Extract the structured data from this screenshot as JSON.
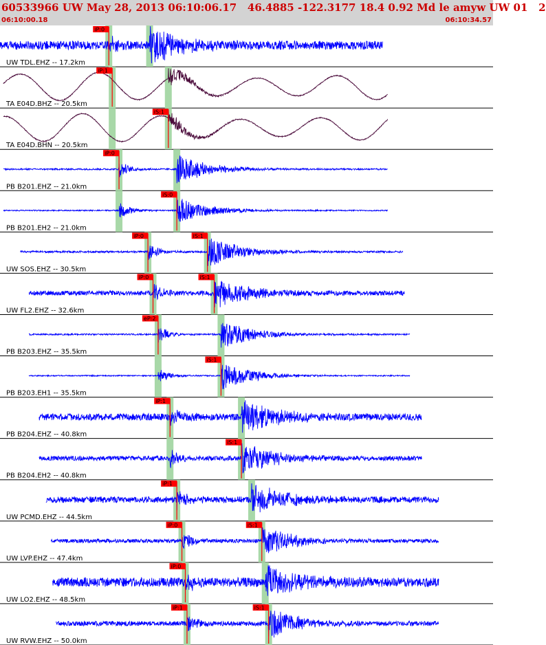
{
  "header": {
    "title": "60533966 UW May 28, 2013 06:10:06.17   46.4885 -122.3177 18.4 0.92 Md le amyw UW 01   2",
    "time_start": "06:10:00.18",
    "time_end": "06:10:34.57"
  },
  "colors": {
    "trace_blue": "#0000ff",
    "trace_dark": "#4a0a3a",
    "pick_red": "#ff0000",
    "window_green": "#a8d8a8",
    "header_bg": "#d3d3d3",
    "title_red": "#cc0000"
  },
  "traces": [
    {
      "label": "UW TDL.EHZ -- 17.2km",
      "color": "blue",
      "kind": "seis",
      "p_pick": "iP:0",
      "s_pick": null,
      "p_time": 6.4,
      "s_time": 8.8,
      "start": 0.0,
      "end": 22.5,
      "noise": 0.22,
      "amp": 1.0
    },
    {
      "label": "TA E04D.BHZ -- 20.5km",
      "color": "dark",
      "kind": "wave",
      "p_pick": "iP:1",
      "s_pick": null,
      "p_time": 6.6,
      "s_time": 9.9,
      "start": 0.2,
      "end": 22.8,
      "noise": 0.05,
      "amp": 0.55
    },
    {
      "label": "TA E04D.BHN -- 20.5km",
      "color": "dark",
      "kind": "wave2",
      "p_pick": null,
      "s_pick": "iS:1",
      "p_time": 6.6,
      "s_time": 9.9,
      "start": 0.2,
      "end": 22.8,
      "noise": 0.05,
      "amp": 0.5
    },
    {
      "label": "PB B201.EHZ -- 21.0km",
      "color": "blue",
      "kind": "seis",
      "p_pick": "iP:0",
      "s_pick": null,
      "p_time": 7.0,
      "s_time": 10.4,
      "start": 0.2,
      "end": 22.8,
      "noise": 0.04,
      "amp": 0.8
    },
    {
      "label": "PB B201.EH2 -- 21.0km",
      "color": "blue",
      "kind": "seis",
      "p_pick": null,
      "s_pick": "iS:0",
      "p_time": 7.0,
      "s_time": 10.4,
      "start": 0.2,
      "end": 22.8,
      "noise": 0.03,
      "amp": 0.7
    },
    {
      "label": "UW SOS.EHZ -- 30.5km",
      "color": "blue",
      "kind": "seis",
      "p_pick": "iP:0",
      "s_pick": "iS:1",
      "p_time": 8.7,
      "s_time": 12.2,
      "start": 1.2,
      "end": 23.7,
      "noise": 0.05,
      "amp": 0.85
    },
    {
      "label": "UW FL2.EHZ -- 32.6km",
      "color": "blue",
      "kind": "seis",
      "p_pick": "iP:0",
      "s_pick": "iS:1",
      "p_time": 9.0,
      "s_time": 12.6,
      "start": 1.7,
      "end": 23.8,
      "noise": 0.12,
      "amp": 0.85
    },
    {
      "label": "PB B203.EHZ -- 35.5km",
      "color": "blue",
      "kind": "seis",
      "p_pick": "eP:2",
      "s_pick": null,
      "p_time": 9.3,
      "s_time": 13.0,
      "start": 1.7,
      "end": 24.1,
      "noise": 0.04,
      "amp": 0.8
    },
    {
      "label": "PB B203.EH1 -- 35.5km",
      "color": "blue",
      "kind": "seis",
      "p_pick": null,
      "s_pick": "iS:1",
      "p_time": 9.3,
      "s_time": 13.0,
      "start": 1.7,
      "end": 24.1,
      "noise": 0.03,
      "amp": 0.75
    },
    {
      "label": "PB B204.EHZ -- 40.8km",
      "color": "blue",
      "kind": "seis",
      "p_pick": "iP:1",
      "s_pick": null,
      "p_time": 10.0,
      "s_time": 14.2,
      "start": 2.3,
      "end": 24.8,
      "noise": 0.18,
      "amp": 0.9
    },
    {
      "label": "PB B204.EH2 -- 40.8km",
      "color": "blue",
      "kind": "seis",
      "p_pick": null,
      "s_pick": "iS:1",
      "p_time": 10.0,
      "s_time": 14.2,
      "start": 2.3,
      "end": 24.8,
      "noise": 0.12,
      "amp": 0.85
    },
    {
      "label": "UW PCMD.EHZ -- 44.5km",
      "color": "blue",
      "kind": "seis",
      "p_pick": "iP:1",
      "s_pick": null,
      "p_time": 10.4,
      "s_time": 14.8,
      "start": 2.7,
      "end": 25.8,
      "noise": 0.16,
      "amp": 0.9
    },
    {
      "label": "UW LVP.EHZ -- 47.4km",
      "color": "blue",
      "kind": "seis",
      "p_pick": "iP:0",
      "s_pick": "iS:1",
      "p_time": 10.7,
      "s_time": 15.4,
      "start": 3.0,
      "end": 25.8,
      "noise": 0.1,
      "amp": 0.8
    },
    {
      "label": "UW LO2.EHZ -- 48.5km",
      "color": "blue",
      "kind": "seis",
      "p_pick": "iP:0",
      "s_pick": null,
      "p_time": 10.9,
      "s_time": 15.6,
      "start": 3.1,
      "end": 25.8,
      "noise": 0.24,
      "amp": 0.9
    },
    {
      "label": "UW RVW.EHZ -- 50.0km",
      "color": "blue",
      "kind": "seis",
      "p_pick": "iP:1",
      "s_pick": "iS:1",
      "p_time": 11.0,
      "s_time": 15.8,
      "start": 3.3,
      "end": 25.8,
      "noise": 0.12,
      "amp": 0.85
    }
  ]
}
